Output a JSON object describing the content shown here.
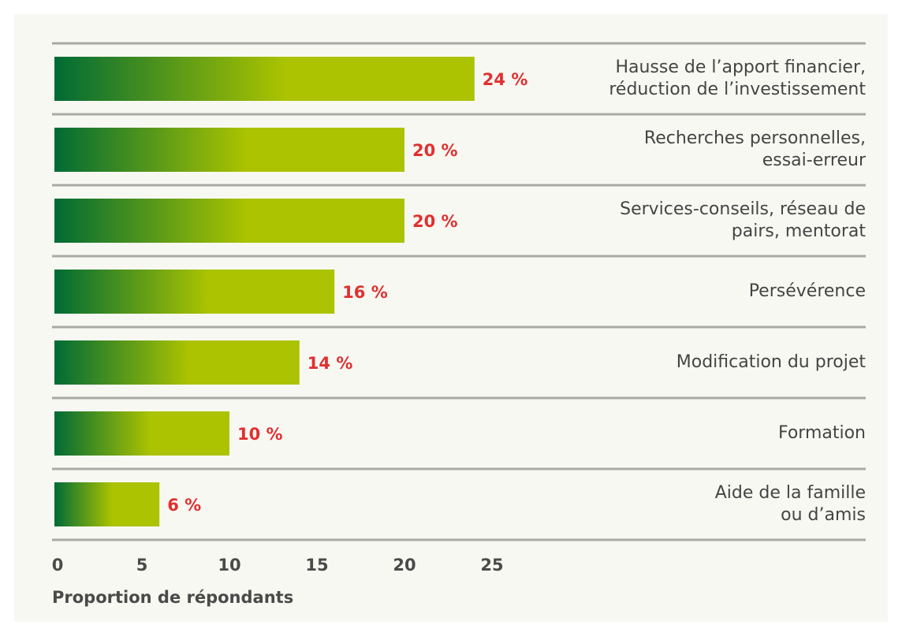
{
  "chart_data": {
    "type": "bar",
    "orientation": "horizontal",
    "categories": [
      "Hausse de l’apport financier,\nréduction de l’investissement",
      "Recherches personnelles,\nessai-erreur",
      "Services-conseils, réseau de\npairs, mentorat",
      "Persévérence",
      "Modification du projet",
      "Formation",
      "Aide de la famille\nou d’amis"
    ],
    "values": [
      24,
      20,
      20,
      16,
      14,
      10,
      6
    ],
    "value_labels": [
      "24 %",
      "20 %",
      "20 %",
      "16 %",
      "14 %",
      "10 %",
      "6 %"
    ],
    "xlabel": "Proportion de répondants",
    "xlim": [
      0,
      25
    ],
    "xticks": [
      0,
      5,
      10,
      15,
      20,
      25
    ],
    "color": [
      "#006b35",
      "#abc300"
    ],
    "label_color": "#e0302f"
  }
}
